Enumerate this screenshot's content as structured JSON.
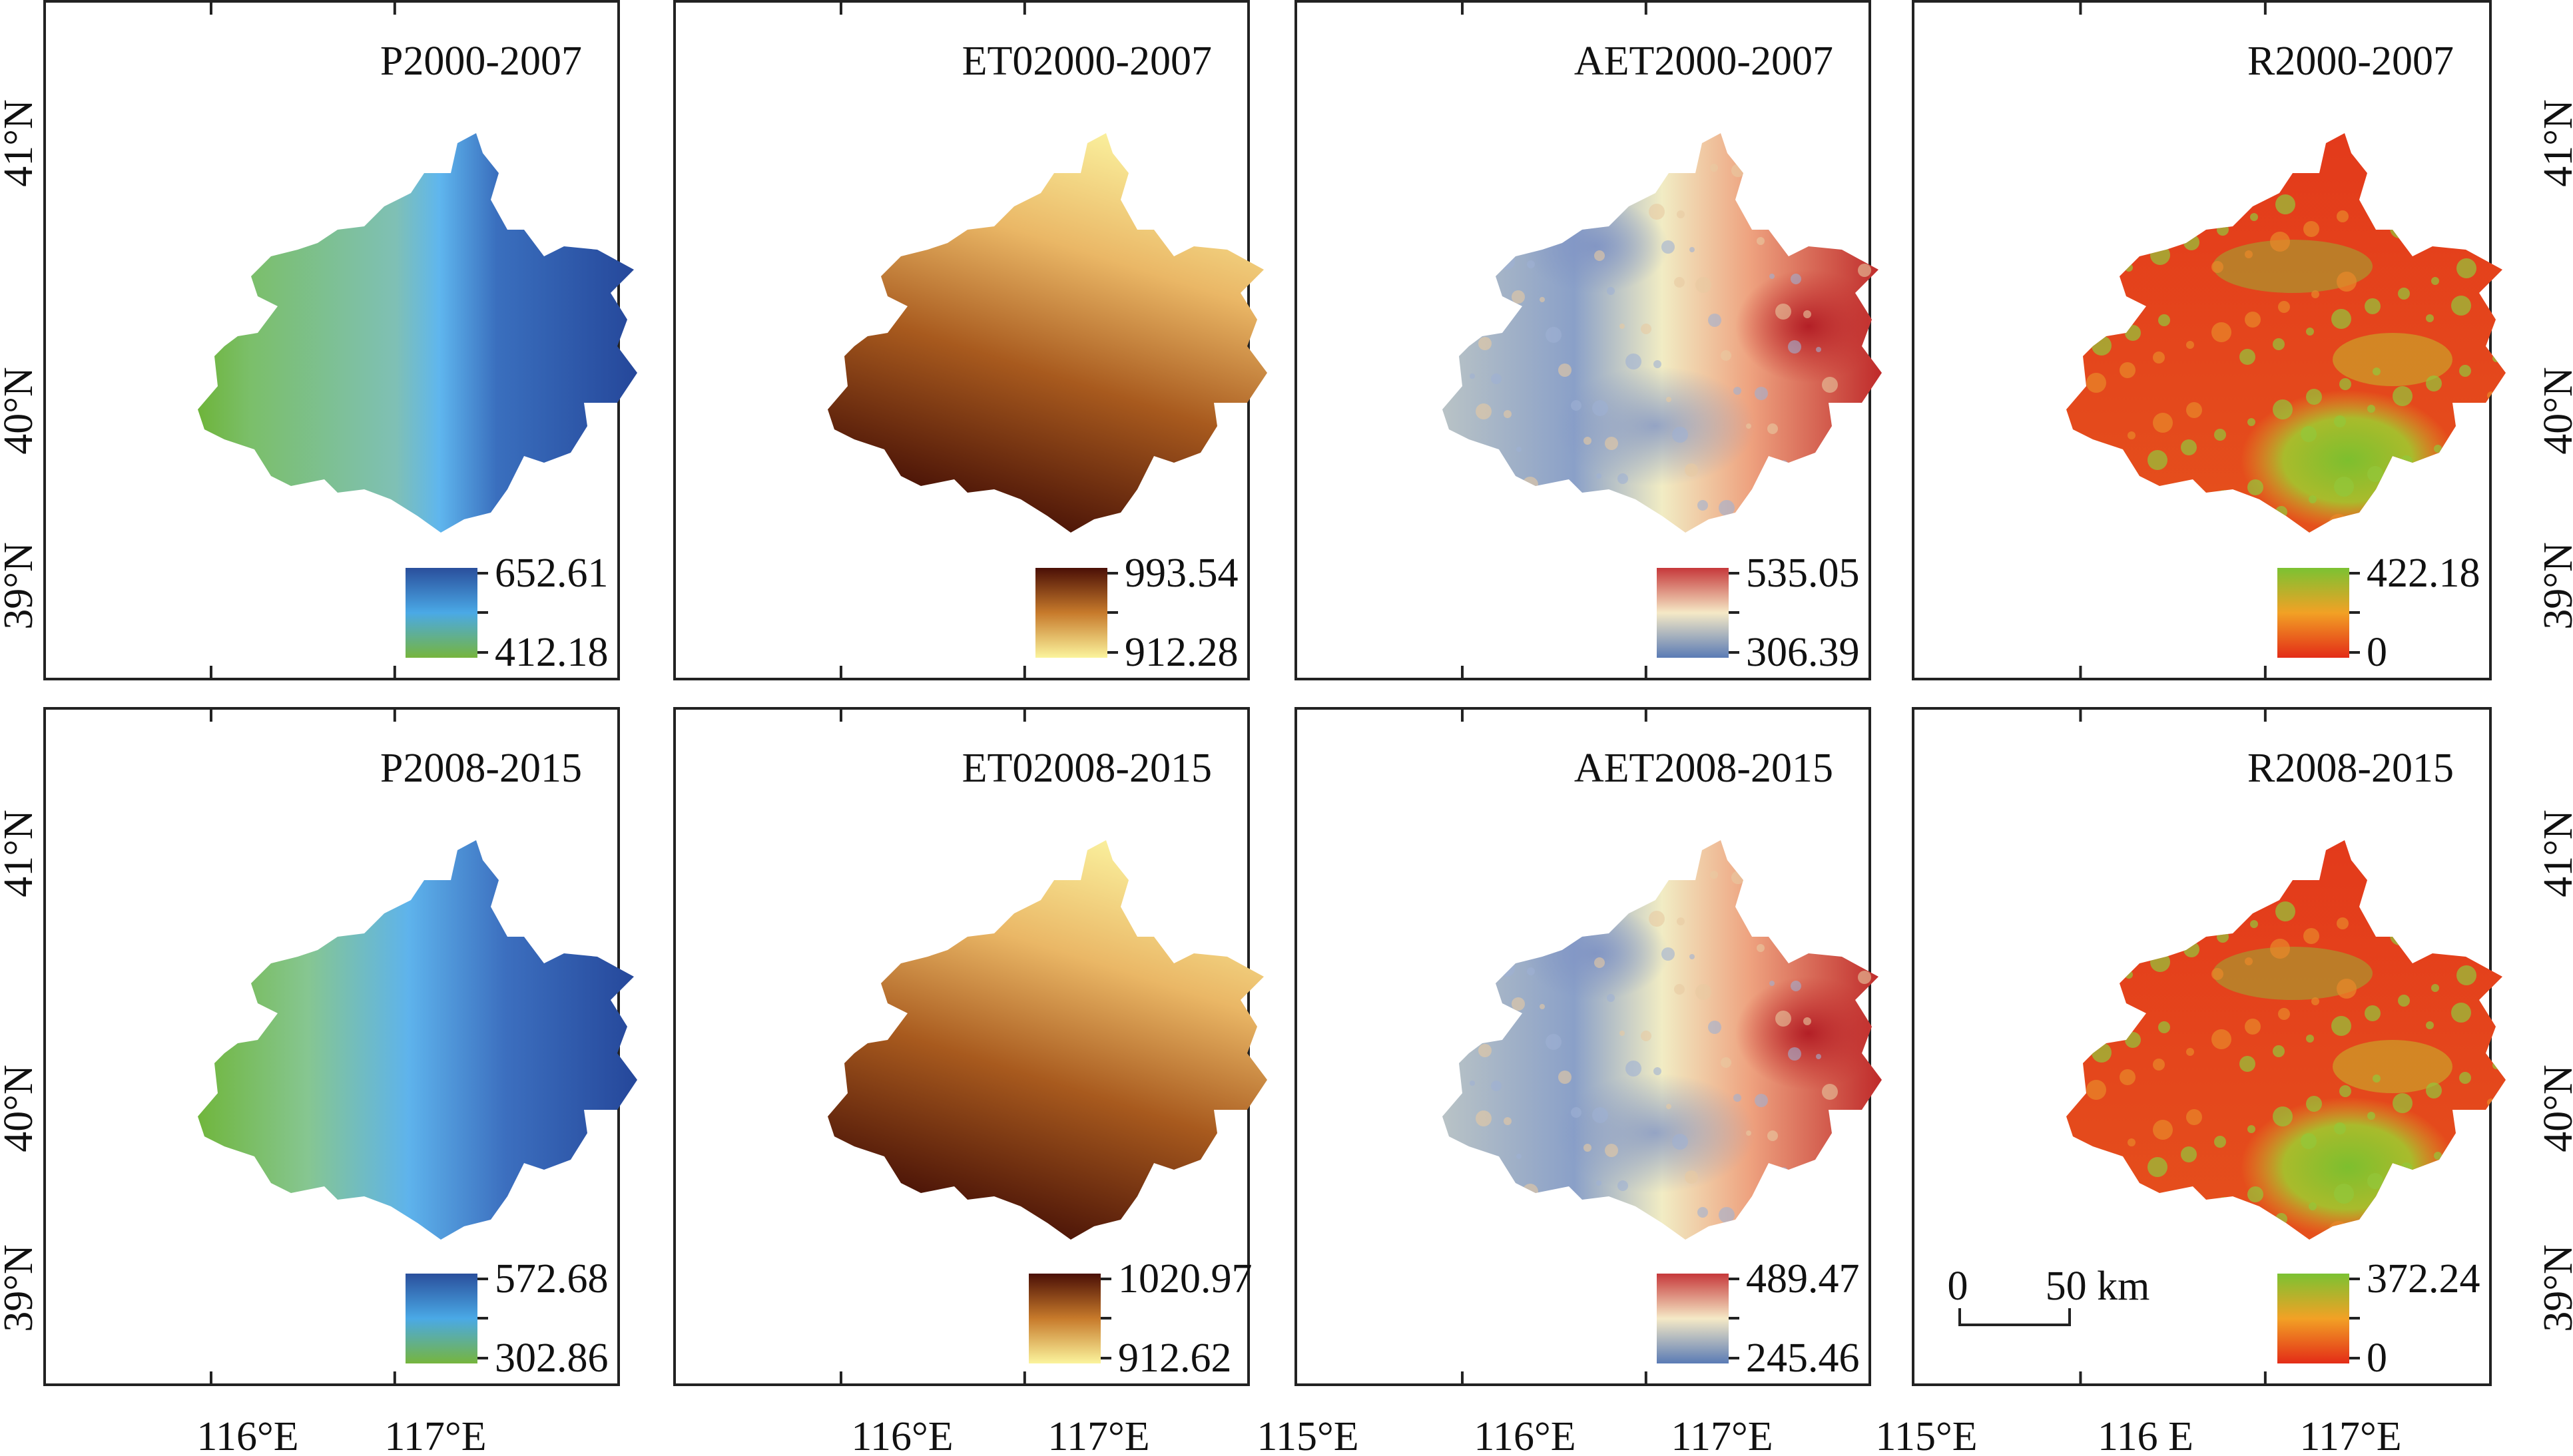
{
  "figure": {
    "panels": [
      {
        "title": "P2000-2007",
        "legend": {
          "max": "652.61",
          "min": "412.18",
          "ramp": [
            "#2a4f9c",
            "#4aa9e6",
            "#76b53d"
          ]
        },
        "map_palette": "precip-2000",
        "row": 0,
        "col": 0
      },
      {
        "title": "ET02000-2007",
        "legend": {
          "max": "993.54",
          "min": "912.28",
          "ramp": [
            "#4a0f06",
            "#c77a2b",
            "#fbf49d"
          ]
        },
        "map_palette": "et0",
        "row": 0,
        "col": 1
      },
      {
        "title": "AET2000-2007",
        "legend": {
          "max": "535.05",
          "min": "306.39",
          "ramp": [
            "#c6383a",
            "#f5e9c6",
            "#5a7bb5"
          ]
        },
        "map_palette": "aet",
        "row": 0,
        "col": 2
      },
      {
        "title": "R2000-2007",
        "legend": {
          "max": "422.18",
          "min": "0",
          "ramp": [
            "#7bc232",
            "#f2a125",
            "#e32c17"
          ]
        },
        "map_palette": "runoff",
        "row": 0,
        "col": 3
      },
      {
        "title": "P2008-2015",
        "legend": {
          "max": "572.68",
          "min": "302.86",
          "ramp": [
            "#2a4f9c",
            "#4aa9e6",
            "#76b53d"
          ]
        },
        "map_palette": "precip-2008",
        "row": 1,
        "col": 0
      },
      {
        "title": "ET02008-2015",
        "legend": {
          "max": "1020.97",
          "min": "912.62",
          "ramp": [
            "#4a0f06",
            "#c77a2b",
            "#fbf49d"
          ]
        },
        "map_palette": "et0",
        "row": 1,
        "col": 1
      },
      {
        "title": "AET2008-2015",
        "legend": {
          "max": "489.47",
          "min": "245.46",
          "ramp": [
            "#c6383a",
            "#f5e9c6",
            "#5a7bb5"
          ]
        },
        "map_palette": "aet",
        "row": 1,
        "col": 2
      },
      {
        "title": "R2008-2015",
        "legend": {
          "max": "372.24",
          "min": "0",
          "ramp": [
            "#7bc232",
            "#f2a125",
            "#e32c17"
          ]
        },
        "map_palette": "runoff",
        "row": 1,
        "col": 3
      }
    ],
    "lat_labels": [
      "41°N",
      "40°N",
      "39°N"
    ],
    "lon_labels_bottom": [
      [
        "116°E",
        "117°E"
      ],
      [
        "116°E",
        "117°E"
      ],
      [
        "115°E",
        "116°E",
        "117°E"
      ],
      [
        "115°E",
        "116 E",
        "117°E"
      ]
    ],
    "scale_bar": {
      "start": "0",
      "end": "50 km"
    }
  }
}
